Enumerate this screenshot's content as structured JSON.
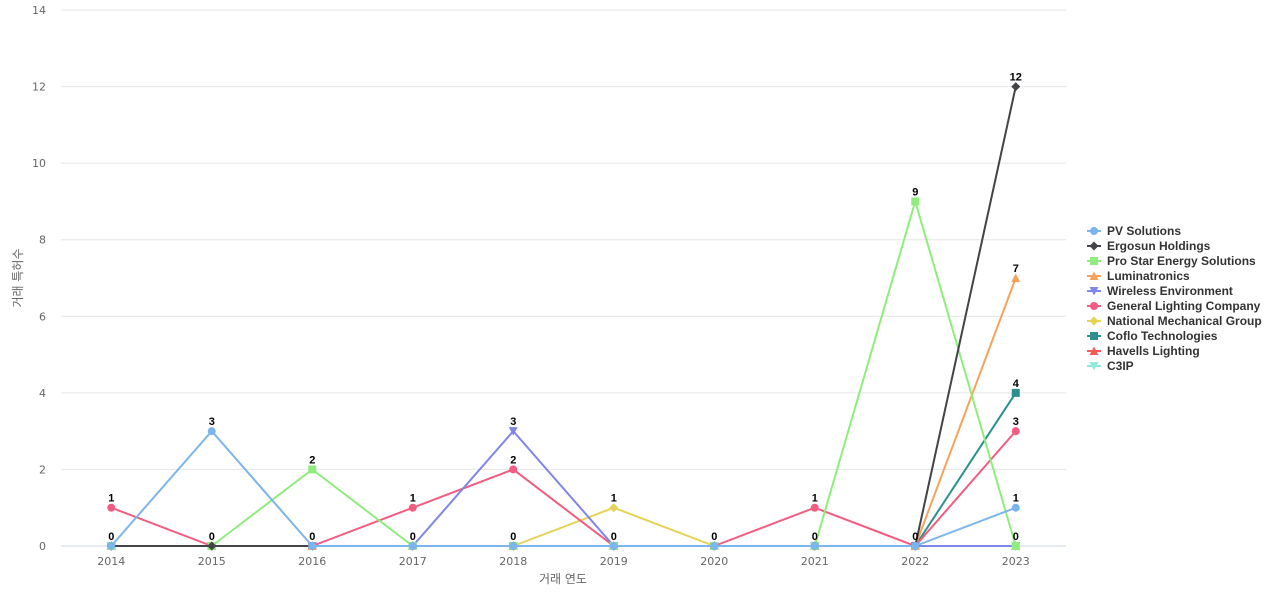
{
  "chart_data": {
    "type": "line",
    "title": "",
    "xlabel": "거래 연도",
    "ylabel": "거래 특허수",
    "x": [
      "2014",
      "2015",
      "2016",
      "2017",
      "2018",
      "2019",
      "2020",
      "2021",
      "2022",
      "2023"
    ],
    "ylim": [
      0,
      14
    ],
    "yticks": [
      0,
      2,
      4,
      6,
      8,
      10,
      12,
      14
    ],
    "grid": true,
    "legend_position": "right",
    "series": [
      {
        "name": "PV Solutions",
        "color": "#7cb5ec",
        "marker": "circle",
        "values": [
          0,
          3,
          0,
          0,
          0,
          0,
          0,
          0,
          0,
          1
        ]
      },
      {
        "name": "Ergosun Holdings",
        "color": "#434348",
        "marker": "diamond",
        "values": [
          0,
          0,
          0,
          0,
          0,
          0,
          0,
          0,
          0,
          12
        ]
      },
      {
        "name": "Pro Star Energy Solutions",
        "color": "#90ed7d",
        "marker": "square",
        "values": [
          0,
          0,
          2,
          0,
          0,
          0,
          0,
          0,
          9,
          0
        ]
      },
      {
        "name": "Luminatronics",
        "color": "#f7a35c",
        "marker": "triangle",
        "values": [
          0,
          0,
          0,
          0,
          0,
          0,
          0,
          0,
          0,
          7
        ]
      },
      {
        "name": "Wireless Environment",
        "color": "#8085e9",
        "marker": "triangle-down",
        "values": [
          0,
          0,
          0,
          0,
          3,
          0,
          0,
          0,
          0,
          0
        ]
      },
      {
        "name": "General Lighting Company",
        "color": "#f15c80",
        "marker": "circle",
        "values": [
          1,
          0,
          0,
          1,
          2,
          0,
          0,
          1,
          0,
          3
        ]
      },
      {
        "name": "National Mechanical Group",
        "color": "#e4d354",
        "marker": "diamond",
        "values": [
          0,
          0,
          0,
          0,
          0,
          1,
          0,
          0,
          0,
          0
        ]
      },
      {
        "name": "Coflo Technologies",
        "color": "#2b908f",
        "marker": "square",
        "values": [
          0,
          0,
          0,
          0,
          0,
          0,
          0,
          0,
          0,
          4
        ]
      },
      {
        "name": "Havells Lighting",
        "color": "#f45b5b",
        "marker": "triangle",
        "values": [
          0,
          0,
          0,
          0,
          0,
          0,
          0,
          0,
          0,
          0
        ]
      },
      {
        "name": "C3IP",
        "color": "#91e8e1",
        "marker": "triangle-down",
        "values": [
          0,
          0,
          0,
          0,
          0,
          0,
          0,
          0,
          0,
          0
        ]
      }
    ],
    "data_labels": [
      {
        "x": "2014",
        "value": 1
      },
      {
        "x": "2014",
        "value": 0
      },
      {
        "x": "2015",
        "value": 3
      },
      {
        "x": "2015",
        "value": 0
      },
      {
        "x": "2016",
        "value": 2
      },
      {
        "x": "2016",
        "value": 0
      },
      {
        "x": "2017",
        "value": 1
      },
      {
        "x": "2017",
        "value": 0
      },
      {
        "x": "2018",
        "value": 3
      },
      {
        "x": "2018",
        "value": 2
      },
      {
        "x": "2018",
        "value": 0
      },
      {
        "x": "2019",
        "value": 1
      },
      {
        "x": "2019",
        "value": 0
      },
      {
        "x": "2020",
        "value": 0
      },
      {
        "x": "2021",
        "value": 1
      },
      {
        "x": "2021",
        "value": 0
      },
      {
        "x": "2022",
        "value": 9
      },
      {
        "x": "2022",
        "value": 0
      },
      {
        "x": "2023",
        "value": 12
      },
      {
        "x": "2023",
        "value": 7
      },
      {
        "x": "2023",
        "value": 4
      },
      {
        "x": "2023",
        "value": 3
      },
      {
        "x": "2023",
        "value": 1
      },
      {
        "x": "2023",
        "value": 0
      }
    ]
  }
}
